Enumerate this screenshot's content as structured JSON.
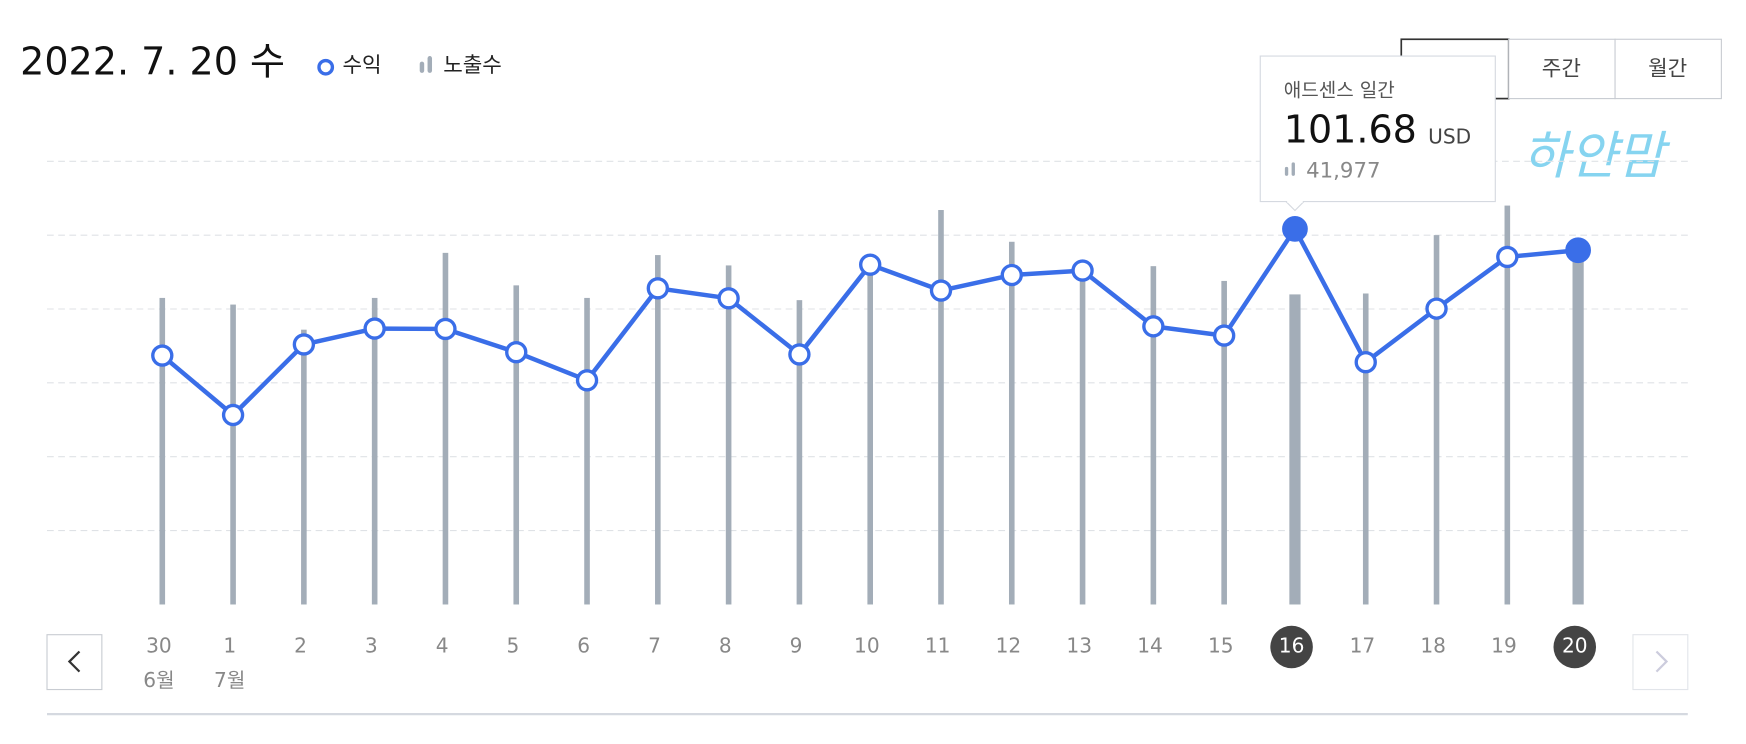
{
  "chart_data": {
    "type": "line-bar",
    "title": "2022. 7. 20 수",
    "categories": [
      "30",
      "1",
      "2",
      "3",
      "4",
      "5",
      "6",
      "7",
      "8",
      "9",
      "10",
      "11",
      "12",
      "13",
      "14",
      "15",
      "16",
      "17",
      "18",
      "19",
      "20"
    ],
    "sublabels": [
      "6월",
      "7월",
      null,
      null,
      null,
      null,
      null,
      null,
      null,
      null,
      null,
      null,
      null,
      null,
      null,
      null,
      null,
      null,
      null,
      null,
      null
    ],
    "series": [
      {
        "name": "수익",
        "color": "#3a6ee8",
        "values": [
          67.4,
          51.3,
          70.4,
          74.7,
          74.6,
          68.3,
          60.7,
          85.6,
          82.9,
          67.7,
          92.0,
          85.0,
          89.2,
          90.4,
          75.3,
          72.8,
          101.68,
          65.6,
          80.1,
          94.1,
          95.9
        ]
      },
      {
        "name": "노출수",
        "color": "#a3adb8",
        "axis": "y2",
        "values": [
          41500,
          40600,
          37200,
          41500,
          47600,
          43200,
          41500,
          47300,
          45900,
          41200,
          46200,
          53400,
          49100,
          45800,
          45800,
          43800,
          41977,
          42100,
          50000,
          54000,
          47300
        ]
      }
    ],
    "ylim": [
      0,
      120
    ],
    "y2lim": [
      0,
      60000
    ],
    "grid": true,
    "hover_category": "16",
    "selected_category": "20",
    "tooltip": {
      "title": "애드센스 일간",
      "value": 101.68,
      "unit": "USD",
      "impressions": {
        "value": 41977,
        "label": "41,977"
      }
    },
    "period_buttons": [
      "주간",
      "월간"
    ],
    "watermark": "하얀맘"
  }
}
